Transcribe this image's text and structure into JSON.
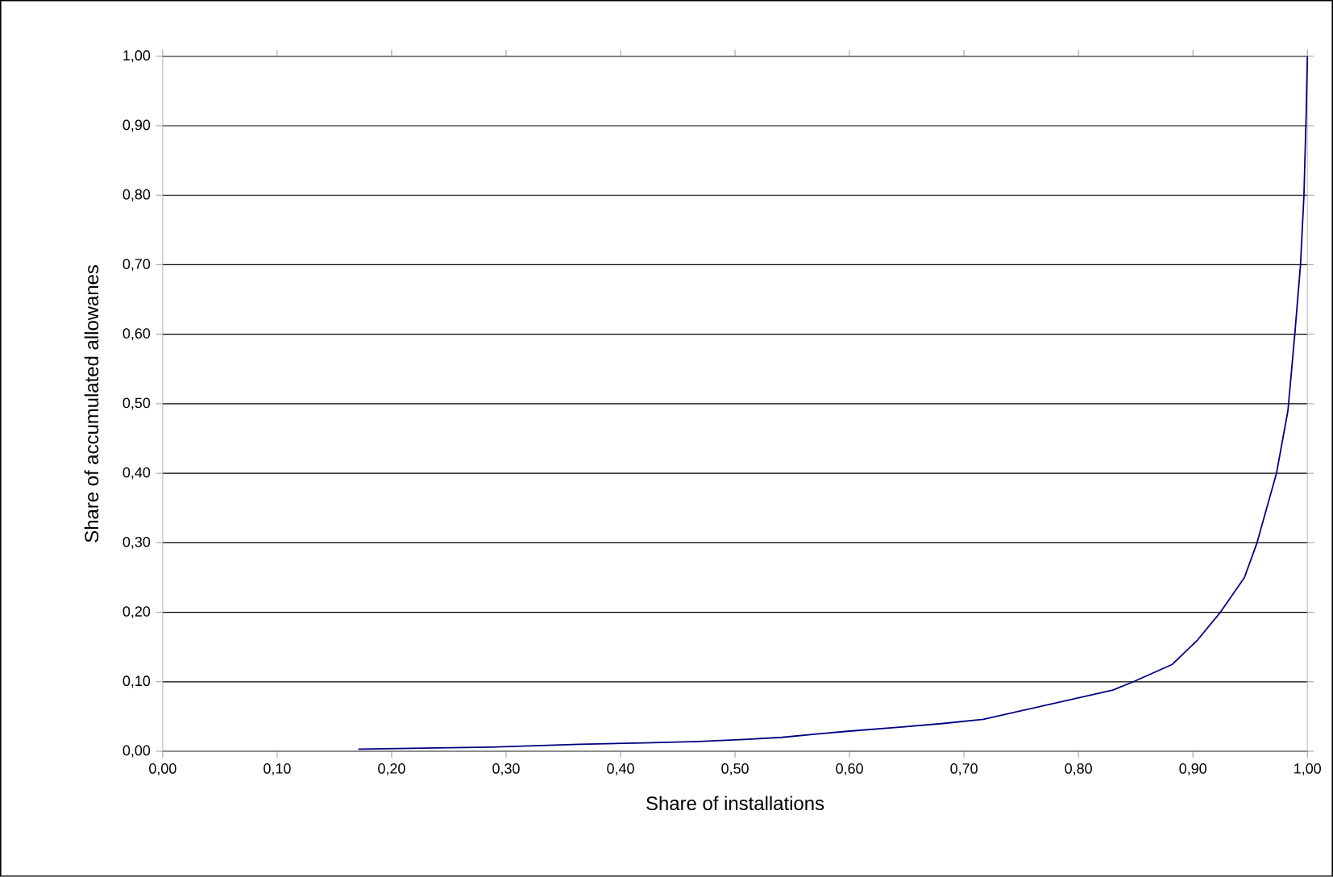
{
  "chart_data": {
    "type": "line",
    "xlabel": "Share of installations",
    "ylabel": "Share of accumulated allowanes",
    "x": [
      0.171,
      0.287,
      0.364,
      0.421,
      0.468,
      0.508,
      0.541,
      0.573,
      0.6,
      0.646,
      0.682,
      0.717,
      0.83,
      0.848,
      0.882,
      0.904,
      0.924,
      0.945,
      0.956,
      0.973,
      0.983,
      0.989,
      0.994,
      0.997,
      0.999,
      1.0
    ],
    "values": [
      0.003,
      0.006,
      0.01,
      0.012,
      0.014,
      0.017,
      0.02,
      0.025,
      0.029,
      0.035,
      0.04,
      0.046,
      0.088,
      0.1,
      0.125,
      0.16,
      0.2,
      0.25,
      0.3,
      0.4,
      0.49,
      0.6,
      0.7,
      0.8,
      0.92,
      1.0
    ],
    "color": "#000080",
    "marker": "none",
    "line_style": "solid",
    "grid": "y",
    "xlim": [
      0,
      1
    ],
    "ylim": [
      0,
      1
    ],
    "xticks": [
      {
        "value": 0,
        "label": "0,00"
      },
      {
        "value": 0.1,
        "label": "0,10"
      },
      {
        "value": 0.2,
        "label": "0,20"
      },
      {
        "value": 0.3,
        "label": "0,30"
      },
      {
        "value": 0.4,
        "label": "0,40"
      },
      {
        "value": 0.5,
        "label": "0,50"
      },
      {
        "value": 0.6,
        "label": "0,60"
      },
      {
        "value": 0.7,
        "label": "0,70"
      },
      {
        "value": 0.8,
        "label": "0,80"
      },
      {
        "value": 0.9,
        "label": "0,90"
      },
      {
        "value": 1.0,
        "label": "1,00"
      }
    ],
    "yticks": [
      {
        "value": 0,
        "label": "0,00"
      },
      {
        "value": 0.1,
        "label": "0,10"
      },
      {
        "value": 0.2,
        "label": "0,20"
      },
      {
        "value": 0.3,
        "label": "0,30"
      },
      {
        "value": 0.4,
        "label": "0,40"
      },
      {
        "value": 0.5,
        "label": "0,50"
      },
      {
        "value": 0.6,
        "label": "0,60"
      },
      {
        "value": 0.7,
        "label": "0,70"
      },
      {
        "value": 0.8,
        "label": "0,80"
      },
      {
        "value": 0.9,
        "label": "0,90"
      },
      {
        "value": 1.0,
        "label": "1,00"
      }
    ]
  }
}
